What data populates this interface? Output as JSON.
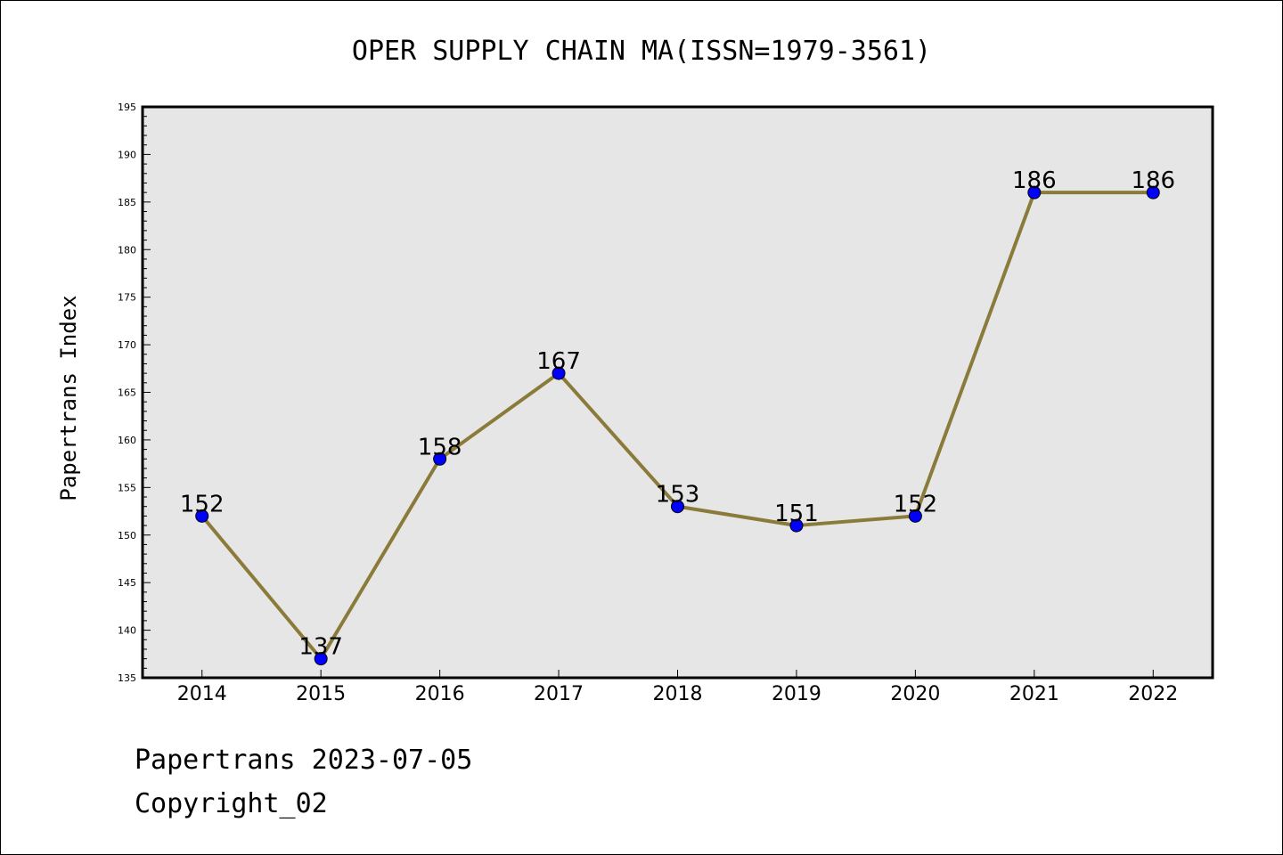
{
  "chart_data": {
    "type": "line",
    "title": "OPER SUPPLY CHAIN MA(ISSN=1979-3561)",
    "xlabel": "",
    "ylabel": "Papertrans Index",
    "categories": [
      "2014",
      "2015",
      "2016",
      "2017",
      "2018",
      "2019",
      "2020",
      "2021",
      "2022"
    ],
    "series": [
      {
        "values": [
          152,
          137,
          158,
          167,
          153,
          151,
          152,
          186,
          186
        ]
      }
    ],
    "data_labels": [
      "152",
      "137",
      "158",
      "167",
      "153",
      "151",
      "152",
      "186",
      "186"
    ],
    "ylim": [
      135,
      195
    ],
    "yticks": [
      "135",
      "140",
      "145",
      "150",
      "155",
      "160",
      "165",
      "170",
      "175",
      "180",
      "185",
      "190",
      "195"
    ],
    "grid": false,
    "legend": "none",
    "colors": {
      "line": "#8b7b3a",
      "marker": "#0000ff",
      "plot_background": "#e6e6e6",
      "frame": "#000000"
    }
  },
  "footer": {
    "date_line": "Papertrans 2023-07-05",
    "copyright_line": "Copyright_02"
  }
}
